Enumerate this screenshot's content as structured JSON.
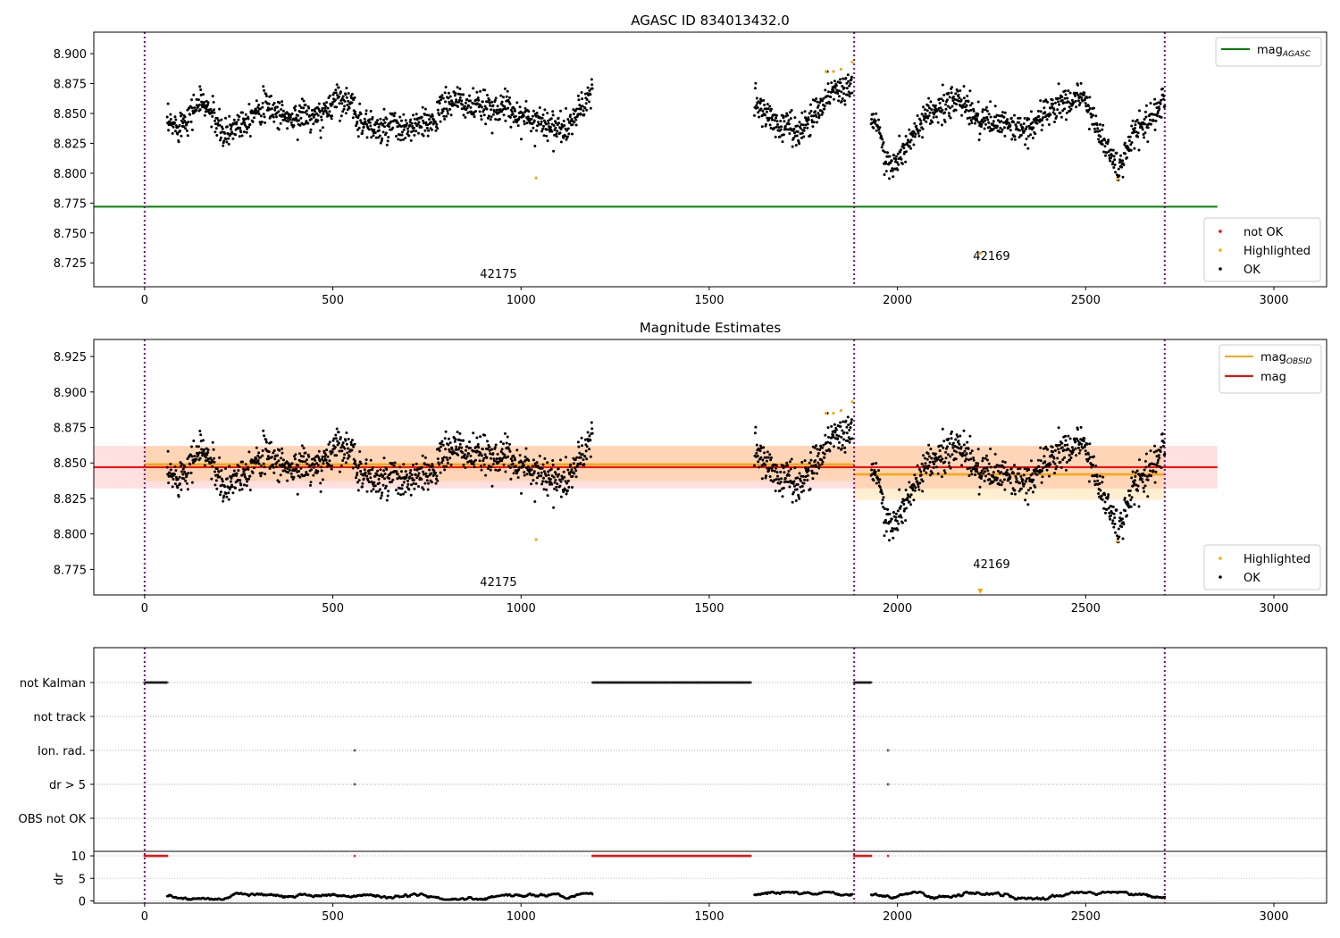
{
  "chart_data": {
    "type": "scatter",
    "panels": [
      {
        "id": "agasc",
        "title": "AGASC ID 834013432.0",
        "ylim": [
          8.705,
          8.918
        ],
        "yticks": [
          8.725,
          8.75,
          8.775,
          8.8,
          8.825,
          8.85,
          8.875,
          8.9
        ],
        "legend_lines": [
          {
            "label": "mag",
            "sub": "AGASC",
            "color": "#008000"
          }
        ],
        "legend_points": [
          {
            "label": "not OK",
            "color": "#ff0000"
          },
          {
            "label": "Highlighted",
            "color": "#ffa500"
          },
          {
            "label": "OK",
            "color": "#000000"
          }
        ]
      },
      {
        "id": "estimates",
        "title": "Magnitude Estimates",
        "ylim": [
          8.757,
          8.937
        ],
        "yticks": [
          8.775,
          8.8,
          8.825,
          8.85,
          8.875,
          8.9,
          8.925
        ],
        "legend_lines": [
          {
            "label": "mag",
            "sub": "OBSID",
            "color": "#ffa500"
          },
          {
            "label": "mag",
            "sub": "",
            "color": "#ff0000"
          }
        ],
        "legend_points": [
          {
            "label": "Highlighted",
            "color": "#ffa500"
          },
          {
            "label": "OK",
            "color": "#000000"
          }
        ]
      }
    ],
    "flags_panel": {
      "categories": [
        "not Kalman",
        "not track",
        "Ion. rad.",
        "dr > 5",
        "OBS not OK"
      ],
      "not_kalman_ranges": [
        [
          0,
          60
        ],
        [
          1190,
          1610
        ],
        [
          1885,
          1930
        ]
      ],
      "ion_rad": [
        558,
        1975
      ],
      "dr_gt_5": [
        558,
        1975
      ]
    },
    "dr_panel": {
      "ylabel": "dr",
      "ylim": [
        -0.5,
        11
      ],
      "yticks": [
        0,
        5,
        10
      ]
    },
    "xlim": [
      -135,
      3140
    ],
    "xticks": [
      0,
      500,
      1000,
      1500,
      2000,
      2500,
      3000
    ],
    "obsid_boundaries": [
      0,
      1885,
      2710
    ],
    "obsids": [
      {
        "label": "42175",
        "x": 940
      },
      {
        "label": "42169",
        "x": 2250
      }
    ],
    "mag_agasc": 8.772,
    "mag": {
      "value": 8.847,
      "band": [
        8.832,
        8.862
      ],
      "x_range": [
        -135,
        2850
      ]
    },
    "mag_obsid": [
      {
        "x_range": [
          0,
          1885
        ],
        "value": 8.849,
        "band": [
          8.837,
          8.862
        ]
      },
      {
        "x_range": [
          1885,
          2710
        ],
        "value": 8.842,
        "band": [
          8.824,
          8.862
        ]
      }
    ],
    "mag_trend_segments": [
      {
        "x": [
          60,
          90,
          120,
          150,
          180,
          210,
          240,
          270,
          300,
          330,
          360,
          390,
          420,
          450,
          480,
          510,
          540,
          570,
          600,
          630,
          660,
          690,
          720,
          750,
          780,
          810,
          840,
          870,
          900,
          930,
          960,
          990,
          1020,
          1050,
          1080,
          1110,
          1140,
          1170,
          1190
        ],
        "y": [
          8.84,
          8.84,
          8.85,
          8.86,
          8.85,
          8.83,
          8.84,
          8.845,
          8.855,
          8.855,
          8.85,
          8.845,
          8.85,
          8.845,
          8.85,
          8.865,
          8.86,
          8.845,
          8.84,
          8.835,
          8.84,
          8.835,
          8.84,
          8.84,
          8.85,
          8.86,
          8.86,
          8.855,
          8.855,
          8.855,
          8.855,
          8.85,
          8.845,
          8.845,
          8.84,
          8.835,
          8.845,
          8.86,
          8.865
        ]
      },
      {
        "x": [
          1620,
          1650,
          1680,
          1710,
          1740,
          1770,
          1800,
          1830,
          1860,
          1880
        ],
        "y": [
          8.86,
          8.85,
          8.84,
          8.84,
          8.835,
          8.845,
          8.86,
          8.87,
          8.87,
          8.875
        ]
      },
      {
        "x": [
          1930,
          1950,
          1970,
          2000,
          2030,
          2060,
          2090,
          2120,
          2150,
          2180,
          2210,
          2240,
          2270,
          2300,
          2330,
          2360,
          2390,
          2420,
          2450,
          2480,
          2510,
          2540,
          2570,
          2590,
          2620,
          2650,
          2680,
          2710
        ],
        "y": [
          8.85,
          8.84,
          8.805,
          8.81,
          8.825,
          8.84,
          8.85,
          8.855,
          8.86,
          8.86,
          8.845,
          8.845,
          8.84,
          8.84,
          8.835,
          8.84,
          8.85,
          8.855,
          8.86,
          8.865,
          8.855,
          8.83,
          8.815,
          8.8,
          8.83,
          8.84,
          8.85,
          8.86
        ]
      }
    ],
    "scatter_sd": 0.008,
    "highlighted": [
      [
        1040,
        8.796
      ],
      [
        1810,
        8.885
      ],
      [
        1830,
        8.885
      ],
      [
        1850,
        8.887
      ],
      [
        1880,
        8.893
      ],
      [
        2220,
        8.733
      ],
      [
        2585,
        8.795
      ]
    ],
    "dr_typical": [
      0.3,
      2.0
    ]
  }
}
